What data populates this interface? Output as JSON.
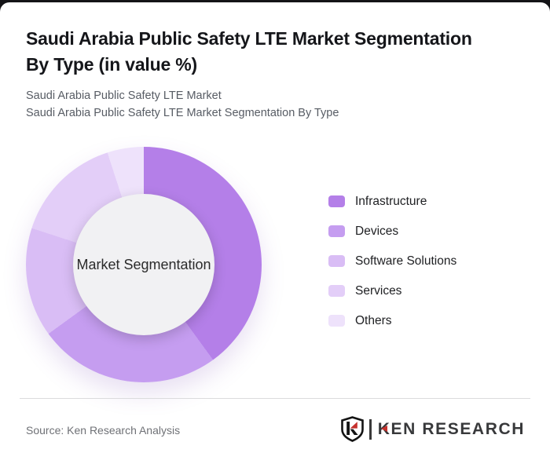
{
  "page": {
    "backdrop_color": "#141417",
    "card_color": "#ffffff"
  },
  "header": {
    "title_line1": "Saudi Arabia Public Safety LTE Market Segmentation",
    "title_line2": "By Type (in value %)",
    "subtitle_line1": "Saudi Arabia Public Safety LTE Market",
    "subtitle_line2": "Saudi Arabia Public Safety LTE Market Segmentation By Type"
  },
  "chart_data": {
    "type": "pie",
    "variant": "donut",
    "title": "Saudi Arabia Public Safety LTE Market Segmentation By Type (in value %)",
    "units": "value %",
    "center_label": "Market Segmentation",
    "start_angle_deg": 0,
    "direction": "clockwise",
    "legend_position": "right",
    "segments": [
      {
        "label": "Infrastructure",
        "value": 40,
        "color": "#b47fe8"
      },
      {
        "label": "Devices",
        "value": 25,
        "color": "#c59df0"
      },
      {
        "label": "Software Solutions",
        "value": 15,
        "color": "#d9bdf5"
      },
      {
        "label": "Services",
        "value": 15,
        "color": "#e3cef8"
      },
      {
        "label": "Others",
        "value": 5,
        "color": "#eee2fb"
      }
    ],
    "hole_color": "#f1f1f3"
  },
  "footer": {
    "source_label": "Source: Ken Research Analysis",
    "logo": {
      "brand_text": "KEN RESEARCH",
      "mark_letter": "K",
      "accent_color": "#c5302c",
      "ink_color": "#1a1a1a"
    }
  }
}
